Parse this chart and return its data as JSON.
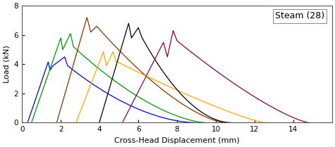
{
  "title": "Steam (28)",
  "xlabel": "Cross-Head Displacement (mm)",
  "ylabel": "Load (kN)",
  "xlim": [
    0,
    16
  ],
  "ylim": [
    0,
    8
  ],
  "xticks": [
    0,
    2,
    4,
    6,
    8,
    10,
    12,
    14
  ],
  "yticks": [
    0,
    2,
    4,
    6,
    8
  ],
  "annotation_text": "Steam (28)",
  "background_color": "#ffffff",
  "label_fontsize": 8,
  "tick_fontsize": 7.5,
  "annotation_fontsize": 9,
  "curves": [
    {
      "color": "#0000EE",
      "segments": [
        {
          "type": "linear",
          "x": [
            0.3,
            1.35
          ],
          "y": [
            0.05,
            4.15
          ]
        },
        {
          "type": "linear",
          "x": [
            1.35,
            1.45
          ],
          "y": [
            4.15,
            3.6
          ]
        },
        {
          "type": "linear",
          "x": [
            1.45,
            1.6
          ],
          "y": [
            3.6,
            3.9
          ]
        },
        {
          "type": "linear",
          "x": [
            1.6,
            2.2
          ],
          "y": [
            3.9,
            4.5
          ]
        },
        {
          "type": "linear",
          "x": [
            2.2,
            2.35
          ],
          "y": [
            4.5,
            3.9
          ]
        },
        {
          "type": "smooth_decay",
          "x_start": 2.35,
          "x_end": 9.0,
          "y_start": 3.9,
          "y_end": 0.0,
          "decay": 1.8
        }
      ]
    },
    {
      "color": "#009900",
      "segments": [
        {
          "type": "linear",
          "x": [
            0.5,
            2.0
          ],
          "y": [
            0.05,
            5.8
          ]
        },
        {
          "type": "linear",
          "x": [
            2.0,
            2.1
          ],
          "y": [
            5.8,
            5.0
          ]
        },
        {
          "type": "linear",
          "x": [
            2.1,
            2.5
          ],
          "y": [
            5.0,
            6.1
          ]
        },
        {
          "type": "linear",
          "x": [
            2.5,
            2.65
          ],
          "y": [
            6.1,
            5.2
          ]
        },
        {
          "type": "smooth_decay",
          "x_start": 2.65,
          "x_end": 9.5,
          "y_start": 5.2,
          "y_end": 0.0,
          "decay": 1.6
        }
      ]
    },
    {
      "color": "#8B3000",
      "segments": [
        {
          "type": "linear",
          "x": [
            1.8,
            3.35
          ],
          "y": [
            0.05,
            7.2
          ]
        },
        {
          "type": "linear",
          "x": [
            3.35,
            3.55
          ],
          "y": [
            7.2,
            6.2
          ]
        },
        {
          "type": "linear",
          "x": [
            3.55,
            3.85
          ],
          "y": [
            6.2,
            6.6
          ]
        },
        {
          "type": "smooth_decay",
          "x_start": 3.85,
          "x_end": 10.5,
          "y_start": 6.6,
          "y_end": 0.0,
          "decay": 1.5
        }
      ]
    },
    {
      "color": "#FFA500",
      "segments": [
        {
          "type": "linear",
          "x": [
            2.8,
            4.2
          ],
          "y": [
            0.05,
            4.85
          ]
        },
        {
          "type": "linear",
          "x": [
            4.2,
            4.35
          ],
          "y": [
            4.85,
            3.9
          ]
        },
        {
          "type": "linear",
          "x": [
            4.35,
            4.7
          ],
          "y": [
            3.9,
            4.85
          ]
        },
        {
          "type": "linear",
          "x": [
            4.7,
            4.85
          ],
          "y": [
            4.85,
            4.2
          ]
        },
        {
          "type": "smooth_decay",
          "x_start": 4.85,
          "x_end": 12.5,
          "y_start": 4.2,
          "y_end": 0.0,
          "decay": 1.2
        }
      ]
    },
    {
      "color": "#000000",
      "segments": [
        {
          "type": "linear",
          "x": [
            4.0,
            5.5
          ],
          "y": [
            0.05,
            6.8
          ]
        },
        {
          "type": "linear",
          "x": [
            5.5,
            5.65
          ],
          "y": [
            6.8,
            5.8
          ]
        },
        {
          "type": "linear",
          "x": [
            5.65,
            6.0
          ],
          "y": [
            5.8,
            6.5
          ]
        },
        {
          "type": "linear",
          "x": [
            6.0,
            6.2
          ],
          "y": [
            6.5,
            5.8
          ]
        },
        {
          "type": "smooth_decay",
          "x_start": 6.2,
          "x_end": 10.8,
          "y_start": 5.8,
          "y_end": 0.0,
          "decay": 1.9
        }
      ]
    },
    {
      "color": "#8B0045",
      "segments": [
        {
          "type": "linear",
          "x": [
            5.2,
            7.3
          ],
          "y": [
            0.05,
            5.5
          ]
        },
        {
          "type": "linear",
          "x": [
            7.3,
            7.5
          ],
          "y": [
            5.5,
            4.5
          ]
        },
        {
          "type": "linear",
          "x": [
            7.5,
            7.8
          ],
          "y": [
            4.5,
            6.3
          ]
        },
        {
          "type": "linear",
          "x": [
            7.8,
            8.0
          ],
          "y": [
            6.3,
            5.6
          ]
        },
        {
          "type": "smooth_decay",
          "x_start": 8.0,
          "x_end": 14.8,
          "y_start": 5.6,
          "y_end": 0.0,
          "decay": 1.3
        }
      ]
    }
  ]
}
